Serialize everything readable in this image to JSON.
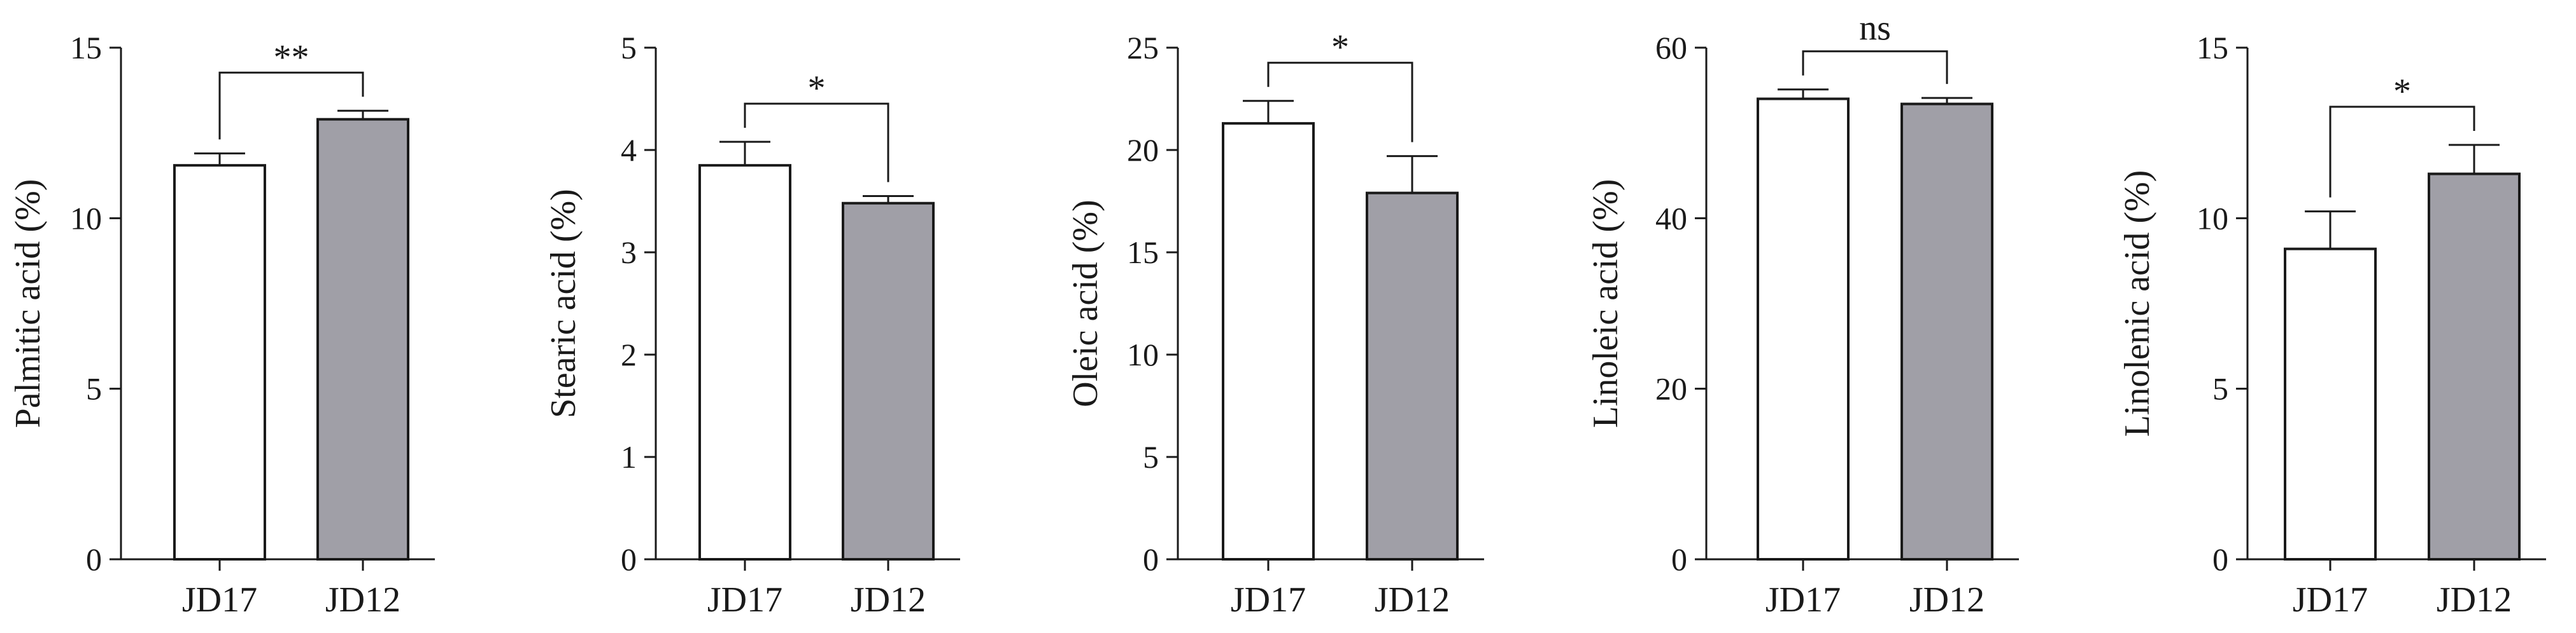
{
  "colors": {
    "JD17": "#ffffff",
    "JD12": "#a09fa7",
    "stroke": "#1a1a1a"
  },
  "chart_data": [
    {
      "type": "bar",
      "ylabel": "Palmitic acid (%)",
      "categories": [
        "JD17",
        "JD12"
      ],
      "values": [
        11.55,
        12.9
      ],
      "errors": [
        0.35,
        0.25
      ],
      "ylim": [
        0,
        15
      ],
      "yticks": [
        "0",
        "5",
        "10",
        "15"
      ],
      "significance": "**"
    },
    {
      "type": "bar",
      "ylabel": "Stearic acid (%)",
      "categories": [
        "JD17",
        "JD12"
      ],
      "values": [
        3.85,
        3.48
      ],
      "errors": [
        0.23,
        0.07
      ],
      "ylim": [
        0,
        5
      ],
      "yticks": [
        "0",
        "1",
        "2",
        "3",
        "4",
        "5"
      ],
      "significance": "*"
    },
    {
      "type": "bar",
      "ylabel": "Oleic acid (%)",
      "categories": [
        "JD17",
        "JD12"
      ],
      "values": [
        21.3,
        17.9
      ],
      "errors": [
        1.1,
        1.8
      ],
      "ylim": [
        0,
        25
      ],
      "yticks": [
        "0",
        "5",
        "10",
        "15",
        "20",
        "25"
      ],
      "significance": "*"
    },
    {
      "type": "bar",
      "ylabel": "Linoleic acid (%)",
      "categories": [
        "JD17",
        "JD12"
      ],
      "values": [
        54.0,
        53.4
      ],
      "errors": [
        1.1,
        0.7
      ],
      "ylim": [
        0,
        60
      ],
      "yticks": [
        "0",
        "20",
        "40",
        "60"
      ],
      "significance": "ns"
    },
    {
      "type": "bar",
      "ylabel": "Linolenic acid (%)",
      "categories": [
        "JD17",
        "JD12"
      ],
      "values": [
        9.1,
        11.3
      ],
      "errors": [
        1.1,
        0.85
      ],
      "ylim": [
        0,
        15
      ],
      "yticks": [
        "0",
        "5",
        "10",
        "15"
      ],
      "significance": "*"
    }
  ]
}
